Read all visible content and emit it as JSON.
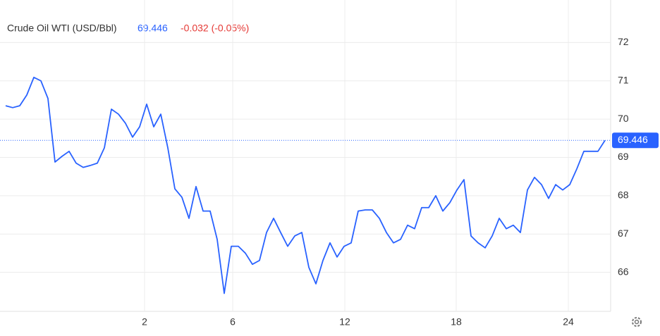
{
  "chart_data": {
    "type": "line",
    "title": "Crude Oil WTI (USD/Bbl)",
    "price": "69.446",
    "change": "-0.032 (-0.05%)",
    "series": [
      {
        "name": "Crude Oil WTI",
        "color": "#2962ff",
        "values": [
          70.35,
          70.3,
          70.35,
          70.63,
          71.09,
          71.0,
          70.54,
          68.88,
          69.03,
          69.16,
          68.85,
          68.74,
          68.79,
          68.85,
          69.25,
          70.26,
          70.13,
          69.89,
          69.53,
          69.8,
          70.39,
          69.8,
          70.13,
          69.25,
          68.18,
          67.96,
          67.41,
          68.24,
          67.6,
          67.6,
          66.86,
          65.45,
          66.68,
          66.68,
          66.5,
          66.21,
          66.31,
          67.04,
          67.41,
          67.04,
          66.68,
          66.95,
          67.04,
          66.13,
          65.7,
          66.31,
          66.77,
          66.4,
          66.68,
          66.77,
          67.6,
          67.63,
          67.63,
          67.41,
          67.04,
          66.77,
          66.86,
          67.23,
          67.14,
          67.69,
          67.69,
          68.0,
          67.6,
          67.82,
          68.15,
          68.42,
          66.95,
          66.77,
          66.64,
          66.95,
          67.41,
          67.14,
          67.23,
          67.04,
          68.15,
          68.48,
          68.29,
          67.93,
          68.29,
          68.15,
          68.29,
          68.7,
          69.16,
          69.16,
          69.16,
          69.446
        ]
      }
    ],
    "xlim": [
      0,
      85
    ],
    "xticks": [
      {
        "value": 19.7,
        "label": "2"
      },
      {
        "value": 32.2,
        "label": "6"
      },
      {
        "value": 48.1,
        "label": "12"
      },
      {
        "value": 63.9,
        "label": "18"
      },
      {
        "value": 79.8,
        "label": "24"
      }
    ],
    "ylim": [
      65.0,
      73.0
    ],
    "yticks": [
      66,
      67,
      68,
      69,
      70,
      71,
      72
    ],
    "grid": true,
    "last_value_label": "69.446"
  }
}
